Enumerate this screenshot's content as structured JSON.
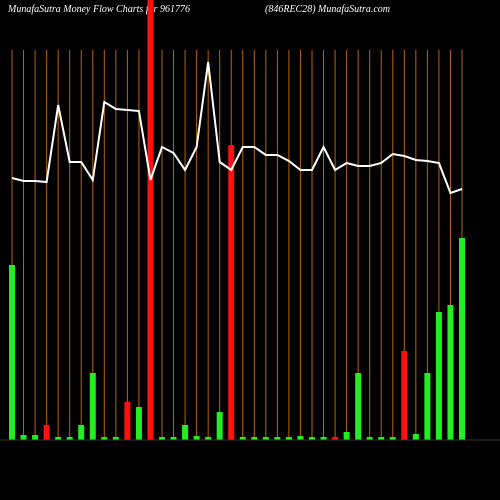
{
  "chart_data": {
    "type": "bar-line",
    "title": "MunafaSutra  Money Flow  Charts for 961776",
    "subtitle": "(846REC28) MunafaSutra.com",
    "categories": [
      null,
      null,
      null,
      null,
      null,
      null,
      null,
      null,
      null,
      null,
      null,
      null,
      null,
      null,
      null,
      null,
      null,
      null,
      null,
      null,
      null,
      null,
      null,
      null,
      null,
      null,
      null,
      null,
      null,
      null,
      null,
      null,
      null,
      null,
      null,
      null,
      null,
      null,
      null,
      null
    ],
    "ylim": [
      0,
      440
    ],
    "grid_color": "#b8660b",
    "line_color": "#ffffff",
    "series": [
      {
        "kind": "bar",
        "values": [
          175,
          5,
          5,
          15,
          3,
          3,
          15,
          67,
          3,
          3,
          38,
          33,
          440,
          3,
          3,
          15,
          4,
          3,
          28,
          295,
          3,
          3,
          3,
          3,
          3,
          4,
          3,
          3,
          3,
          8,
          67,
          3,
          3,
          3,
          89,
          6,
          67,
          128,
          135,
          202
        ],
        "colors": [
          "#22ee22",
          "#22ee22",
          "#22ee22",
          "#ff1111",
          "#22ee22",
          "#22ee22",
          "#22ee22",
          "#22ee22",
          "#22ee22",
          "#22ee22",
          "#ff1111",
          "#22ee22",
          "#ff1111",
          "#22ee22",
          "#22ee22",
          "#22ee22",
          "#22ee22",
          "#22ee22",
          "#22ee22",
          "#ff1111",
          "#22ee22",
          "#22ee22",
          "#22ee22",
          "#22ee22",
          "#22ee22",
          "#22ee22",
          "#22ee22",
          "#22ee22",
          "#ff1111",
          "#22ee22",
          "#22ee22",
          "#22ee22",
          "#22ee22",
          "#22ee22",
          "#ff1111",
          "#22ee22",
          "#22ee22",
          "#22ee22",
          "#22ee22",
          "#22ee22"
        ]
      },
      {
        "kind": "line",
        "values": [
          262,
          259,
          259,
          258,
          335,
          278,
          278,
          260,
          338,
          331,
          330,
          329,
          260,
          293,
          287,
          270,
          293,
          378,
          278,
          270,
          293,
          293,
          285,
          285,
          279,
          270,
          270,
          293,
          270,
          277,
          274,
          274,
          277,
          286,
          284,
          280,
          279,
          277,
          247,
          251
        ]
      }
    ]
  }
}
